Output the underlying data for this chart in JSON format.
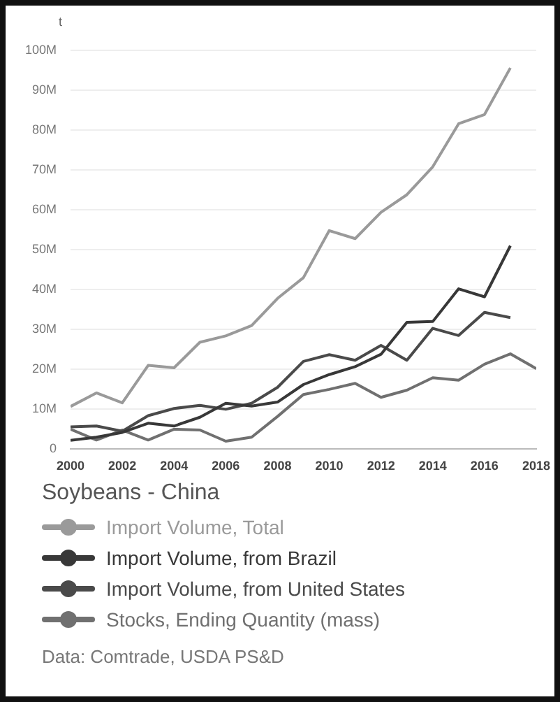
{
  "chart_data": {
    "type": "line",
    "ylabel": "t",
    "legend_title": "Soybeans - China",
    "legend": "bottom",
    "grid": "y",
    "marker": "none",
    "line_style": "solid",
    "x": [
      2000,
      2001,
      2002,
      2003,
      2004,
      2005,
      2006,
      2007,
      2008,
      2009,
      2010,
      2011,
      2012,
      2013,
      2014,
      2015,
      2016,
      2017
    ],
    "xlim": [
      2000,
      2018
    ],
    "xticks": [
      2000,
      2002,
      2004,
      2006,
      2008,
      2010,
      2012,
      2014,
      2016,
      2018
    ],
    "ylim": [
      0,
      100000000
    ],
    "yticks": [
      0,
      {
        "value": 10000000,
        "label": "10M"
      },
      {
        "value": 20000000,
        "label": "20M"
      },
      {
        "value": 30000000,
        "label": "30M"
      },
      {
        "value": 40000000,
        "label": "40M"
      },
      {
        "value": 50000000,
        "label": "50M"
      },
      {
        "value": 60000000,
        "label": "60M"
      },
      {
        "value": 70000000,
        "label": "70M"
      },
      {
        "value": 80000000,
        "label": "80M"
      },
      {
        "value": 90000000,
        "label": "90M"
      },
      {
        "value": 100000000,
        "label": "100M"
      }
    ],
    "series": [
      {
        "name": "Import Volume, Total",
        "color": "#9a9a9a",
        "values": [
          10700000,
          14100000,
          11600000,
          21000000,
          20400000,
          26800000,
          28400000,
          31000000,
          37800000,
          43000000,
          54800000,
          52800000,
          59400000,
          63800000,
          70800000,
          81600000,
          83900000,
          95600000
        ]
      },
      {
        "name": "Import Volume, from Brazil",
        "color": "#383838",
        "values": [
          2200000,
          3000000,
          4200000,
          6500000,
          5800000,
          8000000,
          11500000,
          10800000,
          11800000,
          16200000,
          18700000,
          20700000,
          23800000,
          31800000,
          32000000,
          40200000,
          38200000,
          51000000
        ]
      },
      {
        "name": "Import Volume, from United States",
        "color": "#4a4a4a",
        "values": [
          5600000,
          5800000,
          4500000,
          8400000,
          10200000,
          11000000,
          10000000,
          11500000,
          15500000,
          22000000,
          23700000,
          22300000,
          26000000,
          22300000,
          30300000,
          28500000,
          34300000,
          33000000
        ]
      },
      {
        "name": "Stocks, Ending Quantity (mass)",
        "color": "#707070",
        "x": [
          2000,
          2001,
          2002,
          2003,
          2004,
          2005,
          2006,
          2007,
          2008,
          2009,
          2010,
          2011,
          2012,
          2013,
          2014,
          2015,
          2016,
          2017,
          2018
        ],
        "values": [
          5000000,
          2300000,
          4800000,
          2300000,
          5000000,
          4800000,
          2000000,
          3000000,
          8200000,
          13700000,
          15000000,
          16500000,
          13000000,
          14800000,
          17900000,
          17300000,
          21300000,
          23900000,
          20200000
        ]
      }
    ],
    "annotations": [
      "Data: Comtrade, USDA PS&D"
    ]
  }
}
